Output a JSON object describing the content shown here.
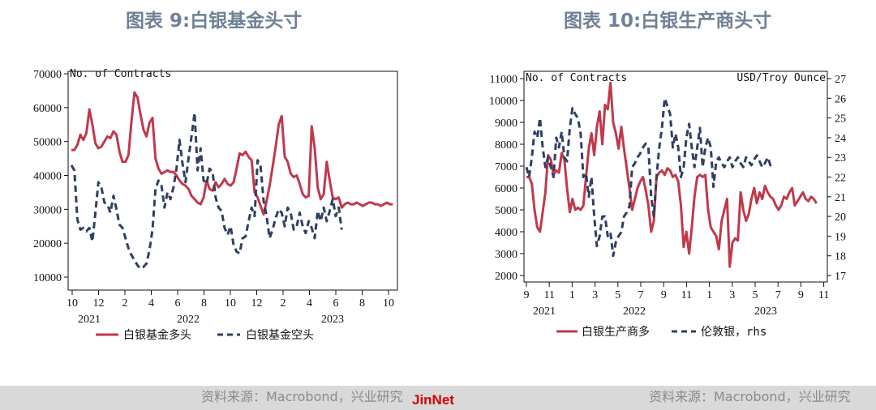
{
  "titles": {
    "left": "图表 9:白银基金头寸",
    "right": "图表 10:白银生产商头寸"
  },
  "sources": {
    "left": "资料来源：Macrobond，兴业研究",
    "right": "资料来源：Macrobond，兴业研究"
  },
  "watermark": "JinNet",
  "colors": {
    "red": "#c0394b",
    "navy": "#2f4061"
  },
  "chart_data": [
    {
      "type": "line",
      "title": "图表 9:白银基金头寸",
      "ylabel": "No. of Contracts",
      "ylim": [
        10000,
        70000
      ],
      "yticks": [
        10000,
        20000,
        30000,
        40000,
        50000,
        60000,
        70000
      ],
      "xtick_labels": [
        "10",
        "12",
        "2",
        "4",
        "6",
        "8",
        "10",
        "12",
        "2",
        "4",
        "6",
        "8",
        "10"
      ],
      "year_labels": [
        "2021",
        "2022",
        "2023"
      ],
      "x_domain": [
        0,
        108
      ],
      "legend_position": "bottom",
      "series": [
        {
          "name": "白银基金多头",
          "color": "#c0394b",
          "style": "solid",
          "x": [
            0,
            1,
            2,
            3,
            4,
            5,
            6,
            7,
            8,
            9,
            10,
            11,
            12,
            13,
            14,
            15,
            16,
            17,
            18,
            19,
            20,
            21,
            22,
            23,
            24,
            25,
            26,
            27,
            28,
            29,
            30,
            31,
            32,
            33,
            34,
            35,
            36,
            37,
            38,
            39,
            40,
            41,
            42,
            43,
            44,
            45,
            46,
            47,
            48,
            49,
            50,
            51,
            52,
            53,
            54,
            55,
            56,
            57,
            58,
            59,
            60,
            61,
            62,
            63,
            64,
            65,
            66,
            67,
            68,
            69,
            70,
            71,
            72,
            73,
            74,
            75,
            76,
            77,
            78,
            79,
            80,
            81,
            82,
            83,
            84,
            85,
            86,
            87,
            88,
            89,
            90,
            91,
            92,
            93,
            94,
            95,
            96,
            97,
            98,
            99,
            100,
            101,
            102,
            103,
            104,
            105,
            106,
            107
          ],
          "values": [
            47500,
            47500,
            49000,
            52000,
            50500,
            52500,
            59500,
            55000,
            49500,
            48000,
            48500,
            50000,
            51500,
            51000,
            53000,
            52000,
            47000,
            44000,
            44000,
            46000,
            56000,
            64500,
            63000,
            58000,
            53500,
            51500,
            55500,
            57000,
            45000,
            42000,
            40500,
            41000,
            41500,
            41000,
            41000,
            40000,
            38500,
            37500,
            37000,
            36000,
            34000,
            33000,
            32000,
            31500,
            33500,
            38500,
            36000,
            35500,
            38000,
            36500,
            37500,
            39000,
            37500,
            37000,
            38000,
            42000,
            46500,
            46000,
            47000,
            45500,
            44500,
            35000,
            33500,
            31000,
            28500,
            32500,
            37000,
            42500,
            48500,
            55000,
            57500,
            45500,
            44000,
            40500,
            39500,
            40000,
            37500,
            34500,
            33500,
            34000,
            54500,
            48000,
            36500,
            33000,
            34500,
            44000,
            38500,
            33500,
            33000,
            33500,
            30500,
            31500,
            32000,
            31500,
            31500,
            32000,
            31500,
            31000,
            31500,
            32000,
            32000,
            31500,
            31500,
            31000,
            31500,
            32000,
            31500,
            31500
          ]
        },
        {
          "name": "白银基金空头",
          "color": "#2f4061",
          "style": "dashed",
          "x": [
            0,
            1,
            2,
            3,
            4,
            5,
            6,
            7,
            8,
            9,
            10,
            11,
            12,
            13,
            14,
            15,
            16,
            17,
            18,
            19,
            20,
            21,
            22,
            23,
            24,
            25,
            26,
            27,
            28,
            29,
            30,
            31,
            32,
            33,
            34,
            35,
            36,
            37,
            38,
            39,
            40,
            41,
            42,
            43,
            44,
            45,
            46,
            47,
            48,
            49,
            50,
            51,
            52,
            53,
            54,
            55,
            56,
            57,
            58,
            59,
            60,
            61,
            62,
            63,
            64,
            65,
            66,
            67,
            68,
            69,
            70,
            71,
            72,
            73,
            74,
            75,
            76,
            77,
            78,
            79,
            80,
            81,
            82,
            83,
            84,
            85,
            86,
            87,
            88,
            89,
            90
          ],
          "values": [
            43000,
            41500,
            27000,
            24000,
            24500,
            23500,
            24500,
            20500,
            29000,
            38000,
            36500,
            32000,
            31500,
            29000,
            34000,
            30000,
            25500,
            24500,
            21500,
            18500,
            16500,
            15000,
            13500,
            12500,
            13000,
            14000,
            18000,
            24000,
            36000,
            38500,
            37000,
            30500,
            35000,
            33000,
            36500,
            42000,
            50500,
            43500,
            38000,
            45000,
            51500,
            58500,
            41500,
            48000,
            38500,
            37500,
            42000,
            41000,
            33500,
            30500,
            29500,
            24500,
            22500,
            25000,
            19500,
            17500,
            17000,
            21500,
            22000,
            26500,
            30500,
            28000,
            44500,
            42500,
            32500,
            28000,
            21500,
            24000,
            27500,
            30000,
            29000,
            25000,
            30500,
            29000,
            24000,
            25000,
            29000,
            25000,
            23000,
            26500,
            24500,
            21500,
            29500,
            26500,
            30500,
            26500,
            29500,
            33000,
            28000,
            30500,
            24000
          ]
        }
      ]
    },
    {
      "type": "line",
      "title": "图表 10:白银生产商头寸",
      "ylabel": "No. of Contracts",
      "ylabel_right": "USD/Troy Ounce",
      "ylim": [
        2000,
        11000
      ],
      "ylim_right": [
        17,
        27
      ],
      "yticks": [
        2000,
        3000,
        4000,
        5000,
        6000,
        7000,
        8000,
        9000,
        10000,
        11000
      ],
      "yticks_right": [
        17,
        18,
        19,
        20,
        21,
        22,
        23,
        24,
        25,
        26,
        27
      ],
      "xtick_labels": [
        "9",
        "11",
        "1",
        "3",
        "5",
        "7",
        "9",
        "11",
        "1",
        "3",
        "5",
        "7",
        "9",
        "11"
      ],
      "year_labels": [
        "2021",
        "2022",
        "2023"
      ],
      "x_domain": [
        0,
        108
      ],
      "legend_position": "bottom",
      "series": [
        {
          "name": "白银生产商多",
          "color": "#c0394b",
          "style": "solid",
          "axis": "left",
          "x": [
            0,
            1,
            2,
            3,
            4,
            5,
            6,
            7,
            8,
            9,
            10,
            11,
            12,
            13,
            14,
            15,
            16,
            17,
            18,
            19,
            20,
            21,
            22,
            23,
            24,
            25,
            26,
            27,
            28,
            29,
            30,
            31,
            32,
            33,
            34,
            35,
            36,
            37,
            38,
            39,
            40,
            41,
            42,
            43,
            44,
            45,
            46,
            47,
            48,
            49,
            50,
            51,
            52,
            53,
            54,
            55,
            56,
            57,
            58,
            59,
            60,
            61,
            62,
            63,
            64,
            65,
            66,
            67,
            68,
            69,
            70,
            71,
            72,
            73,
            74,
            75,
            76,
            77,
            78,
            79,
            80,
            81,
            82,
            83,
            84,
            85,
            86,
            87,
            88,
            89,
            90,
            91,
            92,
            93,
            94,
            95,
            96,
            97,
            98,
            99,
            100,
            101,
            102,
            103,
            104,
            105,
            106,
            107
          ],
          "values": [
            6500,
            6500,
            6200,
            5000,
            4200,
            4000,
            4900,
            5800,
            7500,
            7300,
            6600,
            6800,
            6700,
            7600,
            7300,
            6000,
            4900,
            5500,
            5000,
            5100,
            5000,
            5200,
            6500,
            7800,
            8500,
            7500,
            8800,
            9500,
            8000,
            9800,
            9600,
            10800,
            9000,
            8500,
            7800,
            8800,
            7800,
            6900,
            6000,
            5000,
            5500,
            6000,
            6300,
            6500,
            5900,
            5200,
            4000,
            4500,
            6500,
            6700,
            6800,
            6600,
            6900,
            6800,
            6500,
            6600,
            6300,
            5200,
            3300,
            4000,
            3000,
            4200,
            5600,
            6500,
            6600,
            6500,
            6600,
            5000,
            4200,
            4000,
            3800,
            3200,
            4500,
            5000,
            5500,
            2400,
            3500,
            3700,
            3600,
            5800,
            5000,
            4500,
            4800,
            5500,
            6000,
            5300,
            5800,
            5500,
            6100,
            5800,
            5600,
            5500,
            5200,
            5000,
            5200,
            5600,
            5500,
            5800,
            6000,
            5200,
            5400,
            5600,
            5800,
            5500,
            5400,
            5600,
            5500,
            5300
          ]
        },
        {
          "name": "伦敦银，rhs",
          "color": "#2f4061",
          "style": "dashed",
          "axis": "right",
          "x": [
            0,
            1,
            2,
            3,
            4,
            5,
            6,
            7,
            8,
            9,
            10,
            11,
            12,
            13,
            14,
            15,
            16,
            17,
            18,
            19,
            20,
            21,
            22,
            23,
            24,
            25,
            26,
            27,
            28,
            29,
            30,
            31,
            32,
            33,
            34,
            35,
            36,
            37,
            38,
            39,
            40,
            41,
            42,
            43,
            44,
            45,
            46,
            47,
            48,
            49,
            50,
            51,
            52,
            53,
            54,
            55,
            56,
            57,
            58,
            59,
            60,
            61,
            62,
            63,
            64,
            65,
            66,
            67,
            68,
            69,
            70,
            71,
            72,
            73,
            74,
            75,
            76,
            77,
            78,
            79,
            80,
            81,
            82,
            83,
            84,
            85,
            86,
            87,
            88,
            89,
            90,
            91
          ],
          "values": [
            22.5,
            22,
            23,
            24.3,
            24,
            25,
            23.5,
            22.5,
            23,
            22.5,
            22,
            24,
            23.5,
            24.3,
            23,
            22.8,
            24.5,
            25.5,
            25.2,
            25,
            24.2,
            22,
            22.2,
            21,
            22,
            20,
            18.5,
            19,
            20,
            20,
            19,
            19.2,
            18,
            18.7,
            19,
            19.2,
            20,
            20.2,
            20.5,
            22.5,
            22.7,
            23,
            23.2,
            23.5,
            23.7,
            23.5,
            21,
            20,
            22,
            23.5,
            24.5,
            26,
            25.6,
            25.2,
            23.5,
            24.2,
            23.5,
            22,
            22.5,
            24,
            24.7,
            23.5,
            22.5,
            23.5,
            24.5,
            22.5,
            23.5,
            24,
            23.5,
            21.5,
            22.8,
            23,
            22.7,
            22.5,
            22.8,
            23,
            22.5,
            22.8,
            23,
            22.7,
            22.5,
            23,
            22.8,
            22.6,
            22.9,
            23.1,
            22.8,
            22.5,
            22.7,
            23,
            22.6,
            22.8
          ]
        }
      ]
    }
  ]
}
